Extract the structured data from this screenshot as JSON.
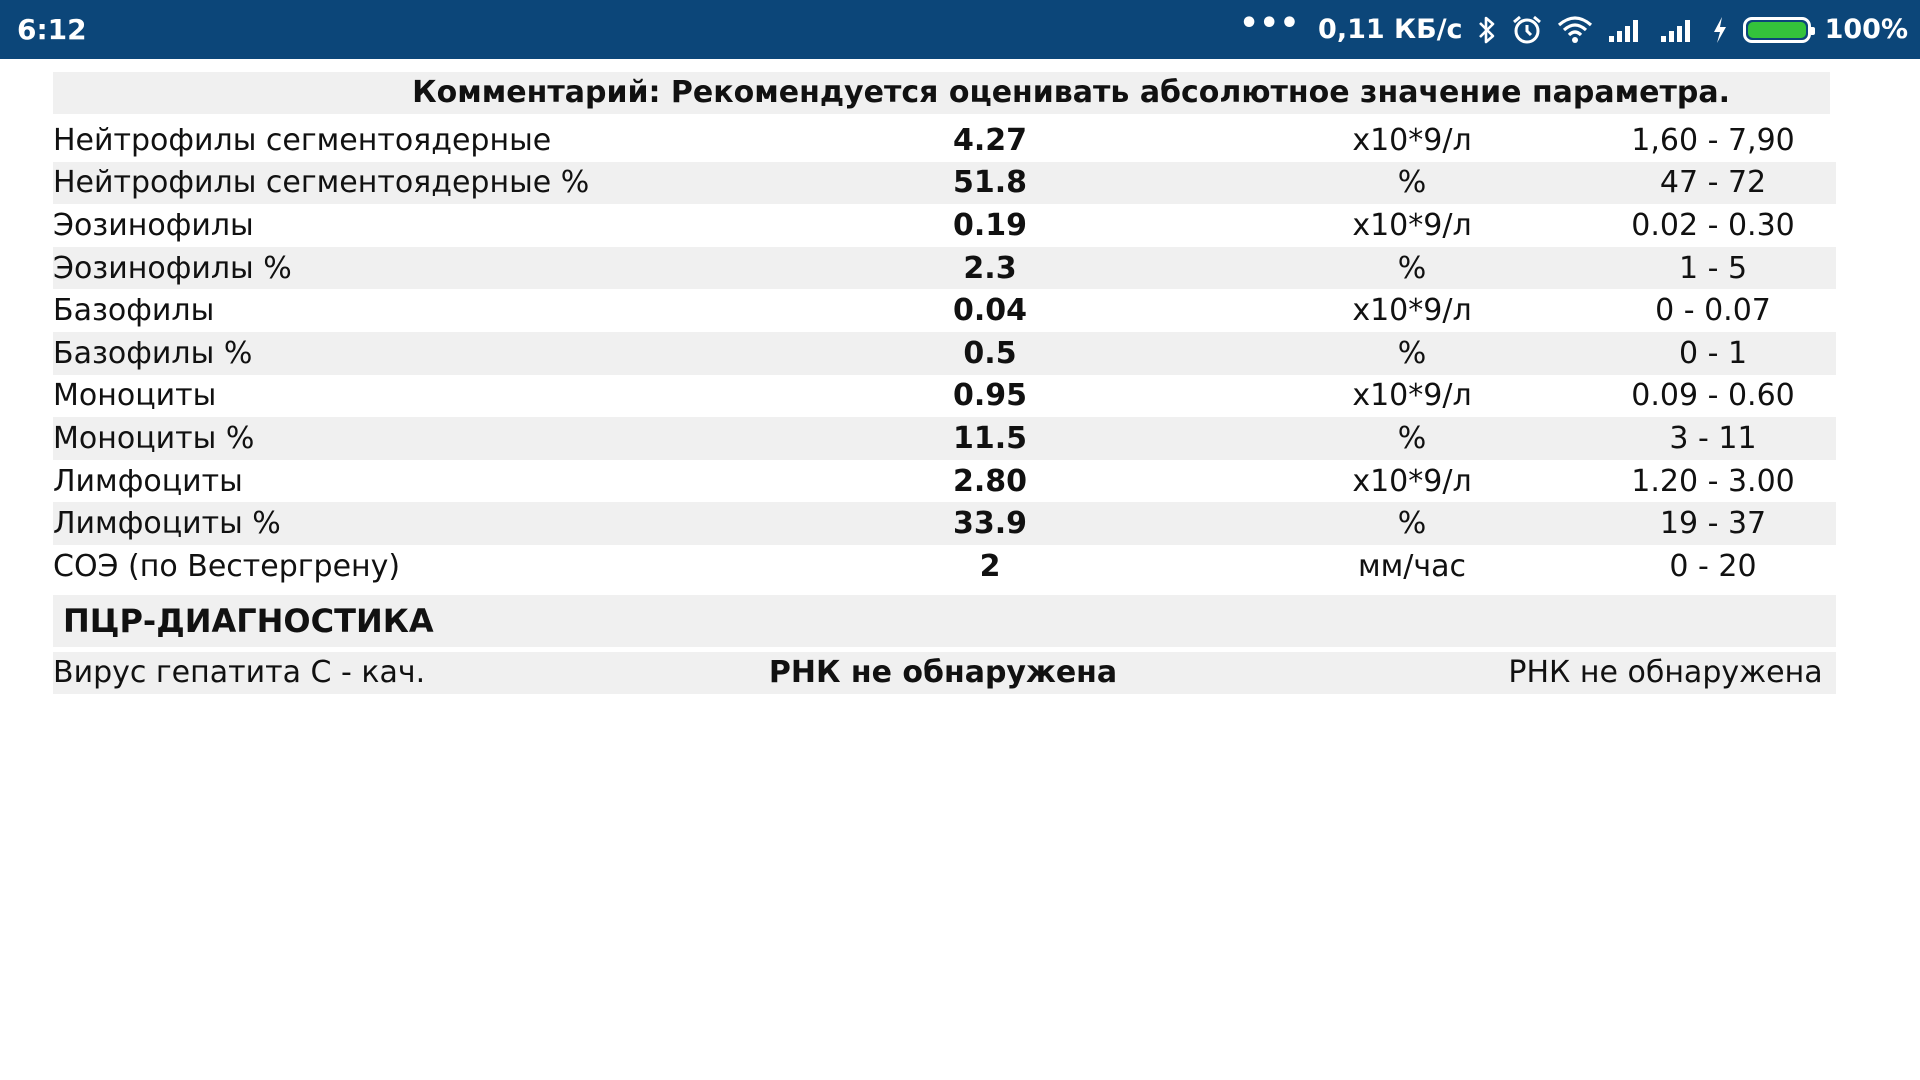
{
  "status_bar": {
    "time": "6:12",
    "dots": "•••",
    "speed": "0,11 КБ/с",
    "battery_text": "100%",
    "battery_level": 1.0,
    "battery_color": "#34c33b",
    "background": "#0c4679",
    "icons": [
      "bluetooth-icon",
      "alarm-icon",
      "wifi-icon",
      "signal-icon",
      "signal-icon",
      "charging-icon"
    ]
  },
  "comment": "Комментарий: Рекомендуется оценивать абсолютное значение параметра.",
  "rows": [
    {
      "name": "Нейтрофилы сегментоядерные",
      "value": "4.27",
      "unit": "x10*9/л",
      "ref": "1,60 - 7,90"
    },
    {
      "name": "Нейтрофилы сегментоядерные %",
      "value": "51.8",
      "unit": "%",
      "ref": "47 - 72"
    },
    {
      "name": "Эозинофилы",
      "value": "0.19",
      "unit": "x10*9/л",
      "ref": "0.02 - 0.30"
    },
    {
      "name": "Эозинофилы %",
      "value": "2.3",
      "unit": "%",
      "ref": "1 - 5"
    },
    {
      "name": "Базофилы",
      "value": "0.04",
      "unit": "x10*9/л",
      "ref": "0 - 0.07"
    },
    {
      "name": "Базофилы %",
      "value": "0.5",
      "unit": "%",
      "ref": "0 - 1"
    },
    {
      "name": "Моноциты",
      "value": "0.95",
      "unit": "x10*9/л",
      "ref": "0.09 - 0.60"
    },
    {
      "name": "Моноциты %",
      "value": "11.5",
      "unit": "%",
      "ref": "3 - 11"
    },
    {
      "name": "Лимфоциты",
      "value": "2.80",
      "unit": "x10*9/л",
      "ref": "1.20 - 3.00"
    },
    {
      "name": "Лимфоциты %",
      "value": "33.9",
      "unit": "%",
      "ref": "19 - 37"
    },
    {
      "name": "СОЭ (по Вестергрену)",
      "value": "2",
      "unit": "мм/час",
      "ref": "0 - 20"
    }
  ],
  "section_title": "ПЦР-ДИАГНОСТИКА",
  "pcr": {
    "name": "Вирус гепатита С - кач.",
    "value": "РНК не обнаружена",
    "ref": "РНК не обнаружена"
  }
}
